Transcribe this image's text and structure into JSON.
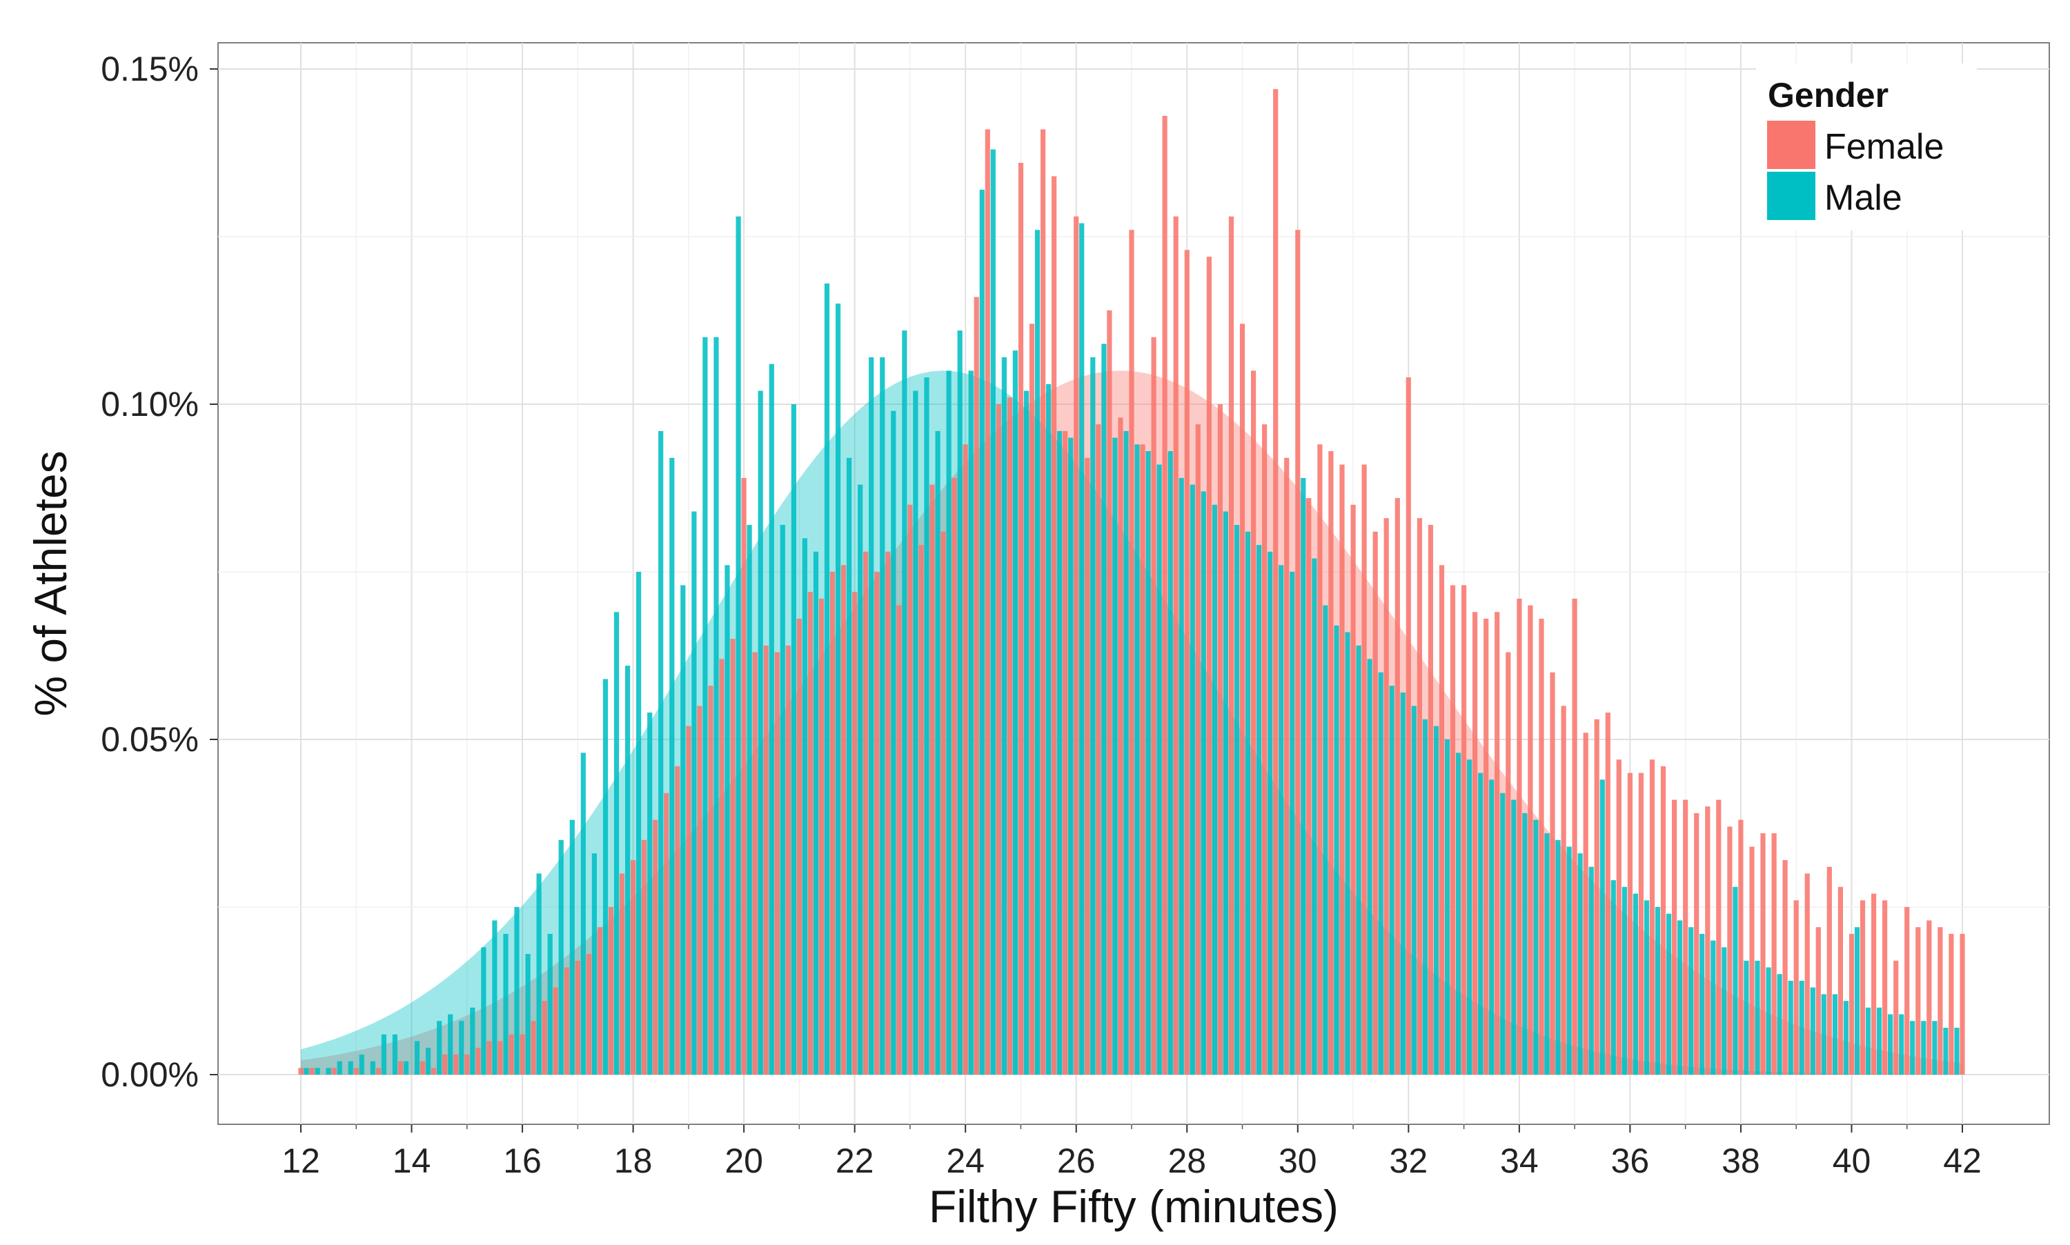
{
  "chart_data": {
    "type": "bar",
    "xlabel": "Filthy Fifty (minutes)",
    "ylabel": "% of Athletes",
    "xlim": [
      12,
      42
    ],
    "ylim": [
      0,
      0.0015
    ],
    "x_ticks": [
      "12",
      "14",
      "16",
      "18",
      "20",
      "22",
      "24",
      "26",
      "28",
      "30",
      "32",
      "34",
      "36",
      "38",
      "40",
      "42"
    ],
    "y_ticks": [
      "0.00%",
      "0.05%",
      "0.10%",
      "0.15%"
    ],
    "grid": true,
    "legend": {
      "title": "Gender",
      "placement": "top-right"
    },
    "colors": {
      "Female": "#f8766d",
      "Male": "#00bfc4"
    },
    "bin_width": 0.2,
    "series": [
      {
        "name": "Female",
        "color": "#f8766d",
        "x_start": 12.0,
        "values": [
          1e-05,
          1e-05,
          0,
          1e-05,
          0,
          1e-05,
          0,
          1e-05,
          0,
          2e-05,
          0,
          2e-05,
          1e-05,
          3e-05,
          3e-05,
          3e-05,
          4e-05,
          5e-05,
          5e-05,
          6e-05,
          6e-05,
          8e-05,
          0.00011,
          0.00013,
          0.00016,
          0.00017,
          0.00018,
          0.00022,
          0.00025,
          0.0003,
          0.00032,
          0.00035,
          0.00038,
          0.00042,
          0.00046,
          0.00052,
          0.00055,
          0.00058,
          0.00062,
          0.00065,
          0.00089,
          0.00063,
          0.00064,
          0.00063,
          0.00064,
          0.00068,
          0.00072,
          0.00071,
          0.00075,
          0.00076,
          0.00072,
          0.00078,
          0.00075,
          0.00078,
          0.0007,
          0.00085,
          0.00079,
          0.00088,
          0.00081,
          0.00089,
          0.00094,
          0.00094,
          0.00097,
          0.001,
          0.00101,
          0.00109,
          0.00112,
          0.00141,
          0.00134,
          0.00096,
          0.00131,
          0.00092,
          0.00097,
          0.00105,
          0.00098,
          0.00093,
          0.00094,
          0.00097,
          0.00098,
          0.00128,
          0.00101,
          0.00097,
          0.00104,
          0.001,
          0.00104,
          0.00108,
          0.00105,
          0.00097,
          0.00107,
          0.00092,
          0.00089,
          0.00086,
          0.00093,
          0.00093,
          0.00091,
          0.00087,
          0.00091,
          0.00081,
          0.00083,
          0.00086,
          0.00085,
          0.00083,
          0.00082,
          0.00076,
          0.00073,
          0.00075,
          0.00069,
          0.00068,
          0.00069,
          0.00063,
          0.00062,
          0.00057,
          0.00059,
          0.0006,
          0.00055,
          0.00056,
          0.00051,
          0.00053,
          0.00054,
          0.00047,
          0.00049,
          0.00045,
          0.00047,
          0.00046,
          0.00041,
          0.00044,
          0.00039,
          0.0004,
          0.00041,
          0.00037,
          0.00038,
          0.00034,
          0.00036,
          0.00036,
          0.00032,
          0.00033,
          0.0003,
          0.00031,
          0.00031,
          0.00028,
          0.00029,
          0.00026,
          0.00027,
          0.00026,
          0.00024,
          0.00025,
          0.00022,
          0.00023,
          0.00022,
          0.00021,
          0.00021,
          0.00018,
          0.00019,
          0.00018,
          0.00017,
          0.00016,
          0.00016,
          0.00015,
          0.00015,
          0.00013,
          0.00014,
          0.00012,
          0.00013,
          0.00011,
          0.00011,
          0.0001,
          0.00011,
          9e-05,
          0.0001,
          8e-05,
          9e-05,
          8e-05,
          8e-05,
          7e-05,
          7e-05,
          7e-05,
          6e-05,
          6e-05,
          6e-05,
          5e-05,
          5e-05,
          5e-05,
          5e-05,
          4e-05,
          4e-05,
          4e-05,
          4e-05
        ],
        "spikes": {
          "24.2": 0.00116,
          "24.4": 0.00141,
          "25.0": 0.00136,
          "26.0": 0.00128,
          "26.6": 0.00114,
          "27.0": 0.00126,
          "27.4": 0.0011,
          "27.6": 0.00143,
          "28.0": 0.00123,
          "28.4": 0.00122,
          "28.8": 0.00128,
          "29.0": 0.00112,
          "29.6": 0.00147,
          "30.0": 0.00126,
          "30.4": 0.00094,
          "31.0": 0.00085,
          "32.0": 0.00104,
          "33.0": 0.00073,
          "34.0": 0.00071,
          "34.2": 0.0007,
          "34.4": 0.00068,
          "35.0": 0.00071,
          "36.0": 0.00045,
          "37.0": 0.00041,
          "39.0": 0.00026,
          "39.4": 0.00022,
          "40.0": 0.00021,
          "40.8": 0.00017
        },
        "density_peak_x": 26.8,
        "density_peak": 0.00105,
        "density_sd": 5.3
      },
      {
        "name": "Male",
        "color": "#00bfc4",
        "x_start": 12.1,
        "values": [
          2e-05,
          1e-05,
          1e-05,
          2e-05,
          2e-05,
          3e-05,
          2e-05,
          3e-05,
          6e-05,
          2e-05,
          5e-05,
          4e-05,
          8e-05,
          9e-05,
          8e-05,
          0.0001,
          9e-05,
          0.0001,
          0.00012,
          0.00016,
          0.00018,
          0.00023,
          0.00021,
          0.00025,
          0.00019,
          0.00032,
          0.00033,
          0.00035,
          0.00031,
          0.00042,
          0.00059,
          0.00054,
          0.00058,
          0.00065,
          0.00073,
          0.00069,
          0.00078,
          0.00088,
          0.00089,
          0.00095,
          0.00096,
          0.00092,
          0.00091,
          0.00098,
          0.001,
          0.00092,
          0.00081,
          0.00088,
          0.00095,
          0.00096,
          0.00105,
          0.001,
          0.00103,
          0.00098,
          0.001,
          0.00104,
          0.00108,
          0.00107,
          0.00109,
          0.00108,
          0.00104,
          0.00103,
          0.00104,
          0.00102,
          0.00108,
          0.00102,
          0.00101,
          0.00103,
          0.00102,
          0.00099,
          0.00098,
          0.00099,
          0.00097,
          0.00095,
          0.00096,
          0.00094,
          0.00093,
          0.00091,
          0.00093,
          0.00089,
          0.00088,
          0.00087,
          0.00085,
          0.00084,
          0.00082,
          0.00081,
          0.00079,
          0.00078,
          0.00076,
          0.00075,
          0.00073,
          0.00071,
          0.0007,
          0.00067,
          0.00066,
          0.00064,
          0.00062,
          0.0006,
          0.00058,
          0.00057,
          0.00055,
          0.00053,
          0.00052,
          0.0005,
          0.00048,
          0.00047,
          0.00045,
          0.00044,
          0.00042,
          0.00041,
          0.00039,
          0.00038,
          0.00036,
          0.00035,
          0.00034,
          0.00033,
          0.00031,
          0.0003,
          0.00029,
          0.00028,
          0.00027,
          0.00026,
          0.00025,
          0.00024,
          0.00023,
          0.00022,
          0.00021,
          0.0002,
          0.00019,
          0.00018,
          0.00017,
          0.00017,
          0.00016,
          0.00015,
          0.00014,
          0.00014,
          0.00013,
          0.00012,
          0.00012,
          0.00011,
          0.00011,
          0.0001,
          0.0001,
          9e-05,
          9e-05,
          8e-05,
          8e-05,
          8e-05,
          7e-05,
          7e-05,
          7e-05,
          6e-05,
          6e-05
        ],
        "spikes": {
          "12.1": 1e-05,
          "13.5": 6e-05,
          "15.3": 0.00019,
          "15.5": 0.00023,
          "15.7": 0.00021,
          "15.9": 0.00025,
          "16.3": 0.0003,
          "16.7": 0.00035,
          "16.9": 0.00038,
          "17.1": 0.00048,
          "17.5": 0.00059,
          "17.7": 0.00069,
          "17.9": 0.00061,
          "18.1": 0.00075,
          "18.5": 0.00096,
          "18.7": 0.00092,
          "19.1": 0.00084,
          "19.3": 0.0011,
          "19.5": 0.0011,
          "19.7": 0.00076,
          "19.9": 0.00128,
          "20.1": 0.00082,
          "20.3": 0.00102,
          "20.5": 0.00106,
          "20.7": 0.00082,
          "21.1": 0.0008,
          "21.3": 0.00078,
          "21.5": 0.00118,
          "21.7": 0.00115,
          "21.9": 0.00092,
          "22.1": 0.00088,
          "22.3": 0.00107,
          "22.5": 0.00107,
          "22.7": 0.00099,
          "22.9": 0.00111,
          "23.1": 0.00102,
          "23.3": 0.00104,
          "23.5": 0.00096,
          "23.7": 0.00105,
          "23.9": 0.00111,
          "24.1": 0.00105,
          "24.3": 0.00132,
          "24.5": 0.00138,
          "24.7": 0.00107,
          "24.9": 0.00108,
          "25.3": 0.00126,
          "25.7": 0.00096,
          "25.9": 0.00095,
          "26.1": 0.00127,
          "26.3": 0.00107,
          "26.5": 0.00109,
          "30.1": 0.00089,
          "30.3": 0.00077,
          "35.5": 0.00044,
          "37.9": 0.00028,
          "40.1": 0.00022
        },
        "density_peak_x": 23.6,
        "density_peak": 0.00105,
        "density_sd": 4.5
      }
    ]
  }
}
